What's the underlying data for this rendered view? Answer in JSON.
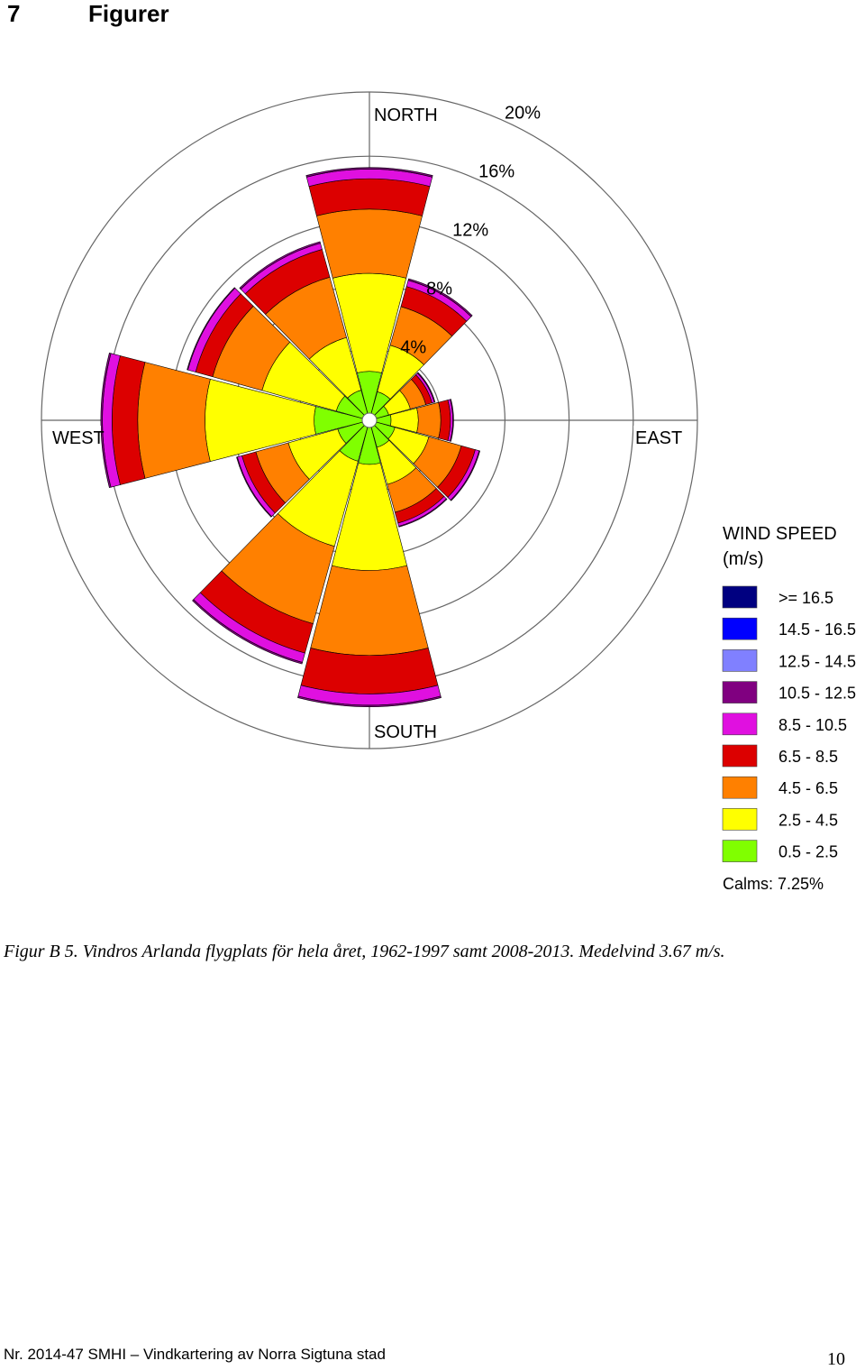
{
  "heading": {
    "number": "7",
    "title": "Figurer"
  },
  "chart_data": {
    "type": "wind-rose",
    "direction_labels": [
      "NORTH",
      "EAST",
      "SOUTH",
      "WEST"
    ],
    "ring_labels": [
      "4%",
      "8%",
      "12%",
      "16%",
      "20%"
    ],
    "ring_values": [
      4,
      8,
      12,
      16,
      20
    ],
    "legend_title": [
      "WIND SPEED",
      "(m/s)"
    ],
    "bins": [
      {
        "label": ">= 16.5",
        "color": "#000080"
      },
      {
        "label": "14.5 - 16.5",
        "color": "#0000ff"
      },
      {
        "label": "12.5 - 14.5",
        "color": "#8080ff"
      },
      {
        "label": "10.5 - 12.5",
        "color": "#800080"
      },
      {
        "label": "8.5 - 10.5",
        "color": "#e010e0"
      },
      {
        "label": "6.5 - 8.5",
        "color": "#dc0000"
      },
      {
        "label": "4.5 - 6.5",
        "color": "#ff8000"
      },
      {
        "label": "2.5 - 4.5",
        "color": "#ffff00"
      },
      {
        "label": "0.5 - 2.5",
        "color": "#80ff00"
      }
    ],
    "stack_order": [
      "0.5 - 2.5",
      "2.5 - 4.5",
      "4.5 - 6.5",
      "6.5 - 8.5",
      "8.5 - 10.5",
      "10.5 - 12.5"
    ],
    "sectors": [
      {
        "direction_deg": 0,
        "cumulative_percent": [
          2.6,
          8.7,
          12.7,
          14.6,
          15.2,
          15.3
        ]
      },
      {
        "direction_deg": 30,
        "cumulative_percent": [
          1.4,
          4.4,
          6.9,
          8.2,
          8.6,
          8.7
        ]
      },
      {
        "direction_deg": 60,
        "cumulative_percent": [
          0.8,
          2.2,
          3.2,
          3.6,
          3.75,
          3.8
        ]
      },
      {
        "direction_deg": 90,
        "cumulative_percent": [
          0.9,
          2.6,
          4.0,
          4.6,
          4.75,
          4.8
        ]
      },
      {
        "direction_deg": 120,
        "cumulative_percent": [
          1.2,
          3.4,
          5.5,
          6.4,
          6.65,
          6.7
        ]
      },
      {
        "direction_deg": 150,
        "cumulative_percent": [
          1.3,
          3.7,
          5.5,
          6.2,
          6.4,
          6.45
        ]
      },
      {
        "direction_deg": 180,
        "cumulative_percent": [
          2.3,
          8.9,
          14.2,
          16.6,
          17.3,
          17.4
        ]
      },
      {
        "direction_deg": 210,
        "cumulative_percent": [
          2.2,
          7.7,
          12.7,
          14.6,
          15.2,
          15.3
        ]
      },
      {
        "direction_deg": 240,
        "cumulative_percent": [
          1.6,
          4.8,
          6.9,
          7.8,
          8.1,
          8.15
        ]
      },
      {
        "direction_deg": 270,
        "cumulative_percent": [
          3.0,
          9.8,
          14.0,
          15.6,
          16.2,
          16.3
        ]
      },
      {
        "direction_deg": 300,
        "cumulative_percent": [
          1.7,
          6.5,
          9.7,
          10.8,
          11.3,
          11.35
        ]
      },
      {
        "direction_deg": 330,
        "cumulative_percent": [
          1.5,
          4.9,
          8.8,
          10.6,
          11.0,
          11.1
        ]
      }
    ],
    "calms_label": "Calms:",
    "calms_value": "7.25%"
  },
  "caption": "Figur B 5. Vindros Arlanda flygplats för hela året, 1962-1997 samt 2008-2013. Medelvind 3.67 m/s.",
  "footer": {
    "left": "Nr. 2014-47 SMHI – Vindkartering av Norra Sigtuna stad",
    "page_number": "10"
  }
}
